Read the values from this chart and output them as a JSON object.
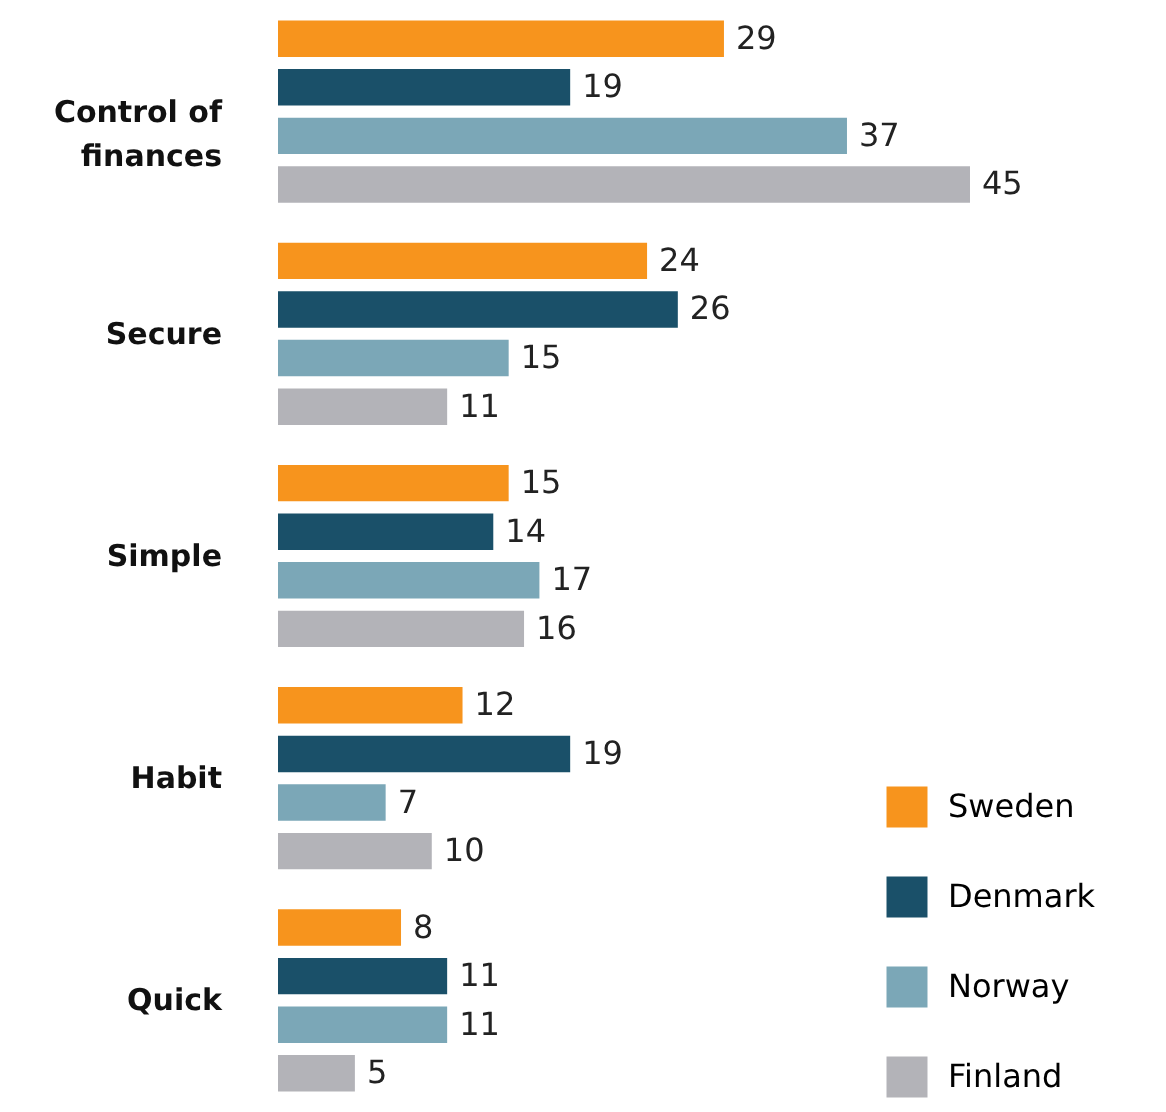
{
  "chart_data": {
    "type": "bar",
    "orientation": "horizontal",
    "data_labels": true,
    "legend": "bottom right",
    "categories": [
      "Control of finances",
      "Secure",
      "Simple",
      "Habit",
      "Quick"
    ],
    "series": [
      {
        "name": "Sweden",
        "color": "#f7941d",
        "values": [
          29,
          24,
          15,
          12,
          8
        ]
      },
      {
        "name": "Denmark",
        "color": "#1a5069",
        "values": [
          19,
          26,
          14,
          19,
          11
        ]
      },
      {
        "name": "Norway",
        "color": "#7ba7b7",
        "values": [
          37,
          15,
          17,
          7,
          11
        ]
      },
      {
        "name": "Finland",
        "color": "#b3b3b8",
        "values": [
          45,
          11,
          16,
          10,
          5
        ]
      }
    ]
  }
}
